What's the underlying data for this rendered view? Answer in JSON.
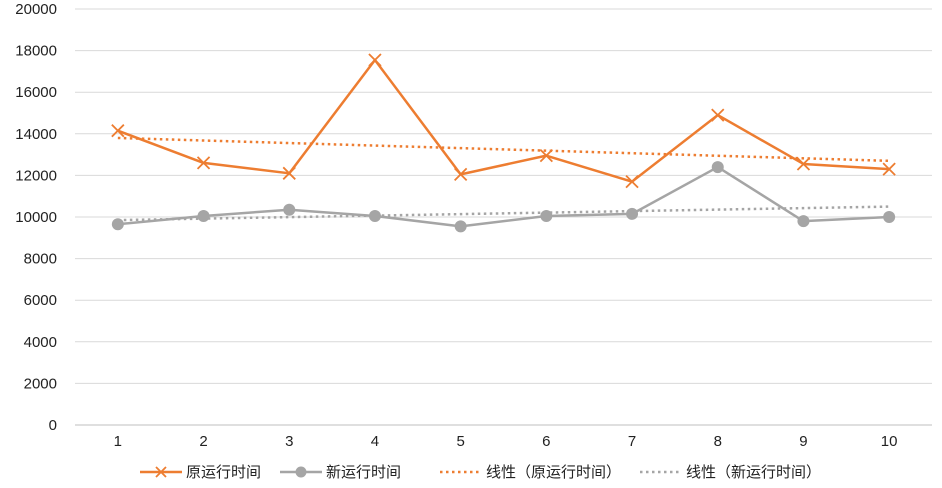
{
  "chart_data": {
    "type": "line",
    "title": "",
    "xlabel": "",
    "ylabel": "",
    "categories": [
      "1",
      "2",
      "3",
      "4",
      "5",
      "6",
      "7",
      "8",
      "9",
      "10"
    ],
    "ylim": [
      0,
      20000
    ],
    "yticks": [
      0,
      2000,
      4000,
      6000,
      8000,
      10000,
      12000,
      14000,
      16000,
      18000,
      20000
    ],
    "grid": true,
    "legend_position": "bottom",
    "series": [
      {
        "name": "原运行时间",
        "color": "#ED7D31",
        "marker": "x",
        "values": [
          14150,
          12600,
          12100,
          17550,
          12050,
          12950,
          11700,
          14900,
          12550,
          12300
        ]
      },
      {
        "name": "新运行时间",
        "color": "#A5A5A5",
        "marker": "circle",
        "values": [
          9650,
          10050,
          10350,
          10050,
          9550,
          10050,
          10150,
          12400,
          9800,
          10000
        ]
      }
    ],
    "trendlines": [
      {
        "name": "线性（原运行时间）",
        "color": "#ED7D31",
        "style": "dotted",
        "start": 13800,
        "end": 12700
      },
      {
        "name": "线性（新运行时间）",
        "color": "#A5A5A5",
        "style": "dotted",
        "start": 9850,
        "end": 10500
      }
    ]
  }
}
